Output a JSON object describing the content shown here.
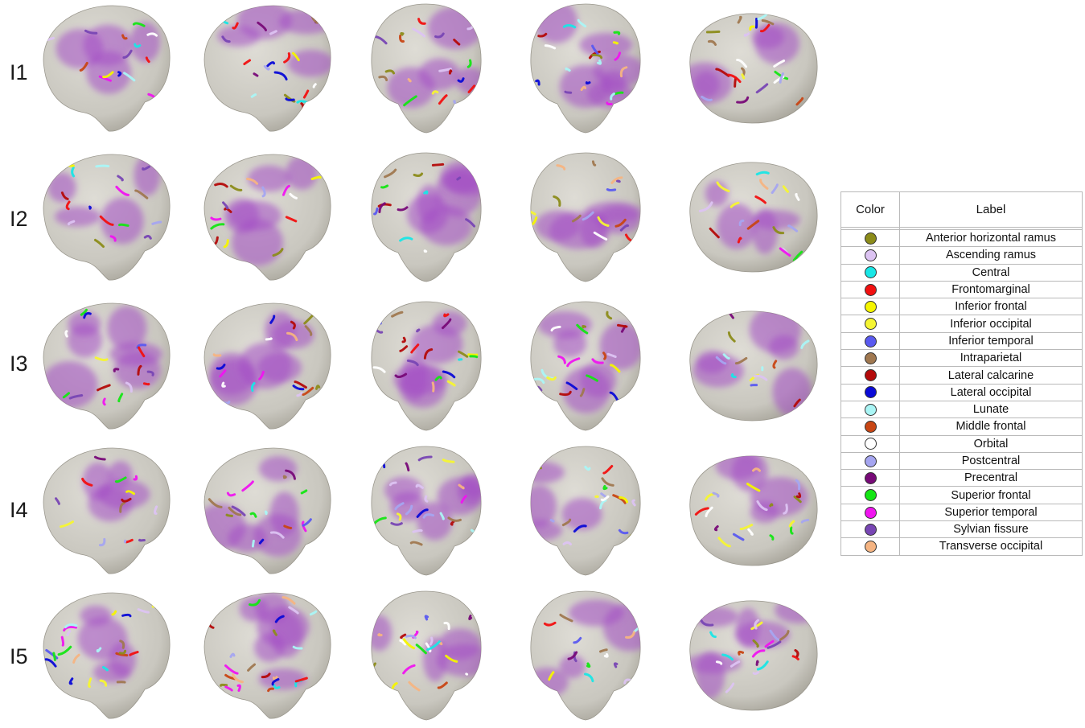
{
  "rows": [
    {
      "label": "I1"
    },
    {
      "label": "I2"
    },
    {
      "label": "I3"
    },
    {
      "label": "I4"
    },
    {
      "label": "I5"
    }
  ],
  "views": [
    "left-lateral",
    "right-oblique",
    "anterior",
    "posterior",
    "superior"
  ],
  "legend": {
    "header_color": "Color",
    "header_label": "Label",
    "items": [
      {
        "label": "Anterior horizontal ramus",
        "color": "#8c8c1a"
      },
      {
        "label": "Ascending ramus",
        "color": "#dcc3f2"
      },
      {
        "label": "Central",
        "color": "#19e6e6"
      },
      {
        "label": "Frontomarginal",
        "color": "#f21010"
      },
      {
        "label": "Inferior frontal",
        "color": "#f5f500"
      },
      {
        "label": "Inferior occipital",
        "color": "#f5f532"
      },
      {
        "label": "Inferior temporal",
        "color": "#5a5af0"
      },
      {
        "label": "Intraparietal",
        "color": "#a07850"
      },
      {
        "label": "Lateral calcarine",
        "color": "#b40a0a"
      },
      {
        "label": "Lateral occipital",
        "color": "#0a0ad7"
      },
      {
        "label": "Lunate",
        "color": "#aaf5f5"
      },
      {
        "label": "Middle frontal",
        "color": "#c84614"
      },
      {
        "label": "Orbital",
        "color": "#ffffff"
      },
      {
        "label": "Postcentral",
        "color": "#a5a5f0"
      },
      {
        "label": "Precentral",
        "color": "#780a78"
      },
      {
        "label": "Superior frontal",
        "color": "#14e614"
      },
      {
        "label": "Superior temporal",
        "color": "#f014f0"
      },
      {
        "label": "Sylvian fissure",
        "color": "#7846b4"
      },
      {
        "label": "Transverse occipital",
        "color": "#f5b482"
      }
    ]
  },
  "colors": {
    "brain_fill": "#c9c7bf",
    "brain_shade": "#a9a69c",
    "highlight_purple": "#a24bc4"
  }
}
